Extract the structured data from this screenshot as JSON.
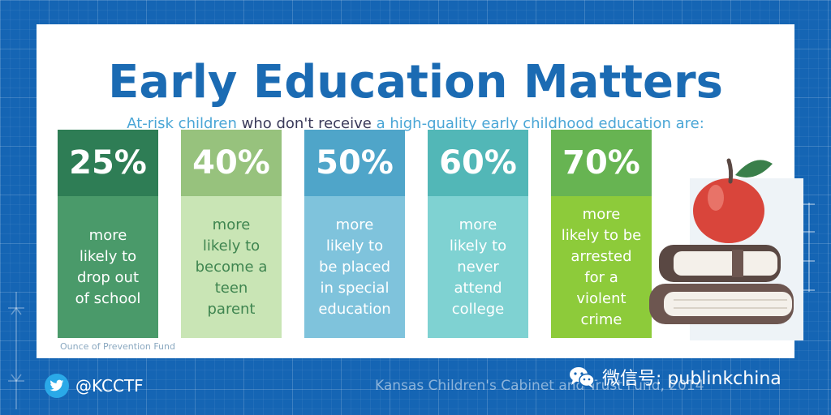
{
  "title": "Early Education Matters",
  "subtitle": {
    "part1": "At-risk children",
    "part2": " who don't receive ",
    "part3": "a high-quality early childhood education are:"
  },
  "stats": [
    {
      "percent": "25%",
      "lines": [
        "more",
        "likely to",
        "drop out",
        "of school"
      ],
      "top_color": "#2e7d55",
      "bottom_color": "#4a9a6a",
      "text_color": "#ffffff"
    },
    {
      "percent": "40%",
      "lines": [
        "more",
        "likely to",
        "become a",
        "teen",
        "parent"
      ],
      "top_color": "#97c27d",
      "bottom_color": "#c9e5b5",
      "text_color": "#3f8550"
    },
    {
      "percent": "50%",
      "lines": [
        "more",
        "likely to",
        "be placed",
        "in special",
        "education"
      ],
      "top_color": "#4fa5c9",
      "bottom_color": "#7fc3dc",
      "text_color": "#ffffff"
    },
    {
      "percent": "60%",
      "lines": [
        "more",
        "likely to",
        "never",
        "attend",
        "college"
      ],
      "top_color": "#52b7b7",
      "bottom_color": "#7fd2d2",
      "text_color": "#ffffff"
    },
    {
      "percent": "70%",
      "lines": [
        "more",
        "likely to be",
        "arrested",
        "for a",
        "violent",
        "crime"
      ],
      "top_color": "#67b452",
      "bottom_color": "#8dcb3a",
      "text_color": "#ffffff"
    }
  ],
  "source": "Ounce of Prevention Fund",
  "footer": {
    "twitter_handle": "@KCCTF",
    "credit": "Kansas Children's Cabinet and Trust Fund, 2014"
  },
  "watermark": {
    "text": "微信号: publinkchina",
    "icon": "wechat-icon"
  },
  "colors": {
    "background": "#1565b4",
    "title": "#1b6bb3",
    "subtitle_accent": "#4aa6d6",
    "subtitle_dark": "#3a3a5a"
  }
}
